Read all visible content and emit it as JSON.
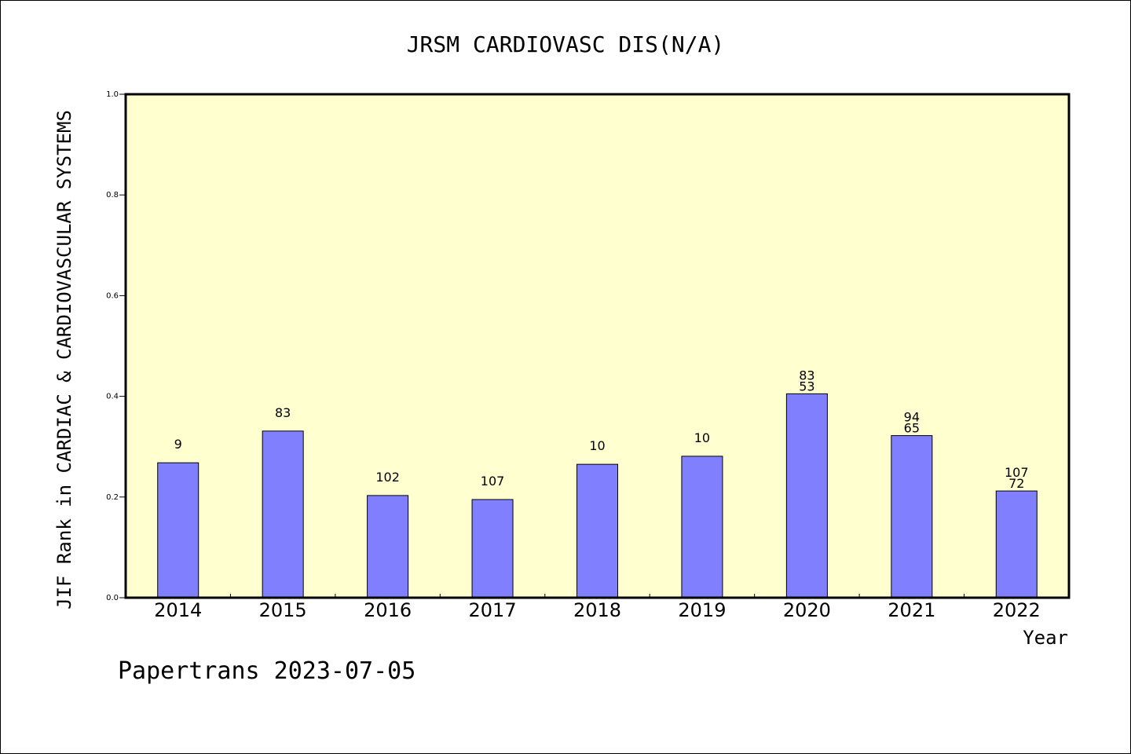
{
  "chart_data": {
    "type": "bar",
    "title": "JRSM CARDIOVASC DIS(N/A)",
    "ylabel": "JIF Rank in CARDIAC & CARDIOVASCULAR SYSTEMS",
    "xlabel": "Year",
    "ylim": [
      0,
      1.0
    ],
    "yticks": [
      "0.0",
      "0.2",
      "0.4",
      "0.6",
      "0.8",
      "1.0"
    ],
    "categories": [
      "2014",
      "2015",
      "2016",
      "2017",
      "2018",
      "2019",
      "2020",
      "2021",
      "2022"
    ],
    "values": [
      0.268,
      0.331,
      0.203,
      0.195,
      0.265,
      0.281,
      0.405,
      0.322,
      0.212
    ],
    "bar_labels": [
      [
        "9"
      ],
      [
        "83"
      ],
      [
        "102"
      ],
      [
        "107"
      ],
      [
        "10"
      ],
      [
        "10"
      ],
      [
        "83",
        "53"
      ],
      [
        "94",
        "65"
      ],
      [
        "107",
        "72"
      ]
    ],
    "grid": false,
    "colors": {
      "bar": "#8080ff",
      "plot_background": "#ffffd0"
    }
  },
  "footer": "Papertrans 2023-07-05"
}
